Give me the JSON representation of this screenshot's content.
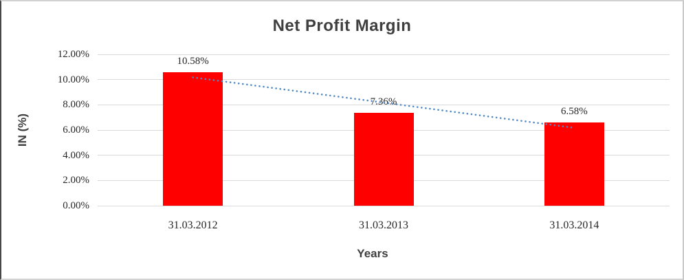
{
  "chart_data": {
    "type": "bar",
    "title": "Net Profit Margin",
    "xlabel": "Years",
    "ylabel": "IN (%)",
    "categories": [
      "31.03.2012",
      "31.03.2013",
      "31.03.2014"
    ],
    "values": [
      10.58,
      7.36,
      6.58
    ],
    "data_labels": [
      "10.58%",
      "7.36%",
      "6.58%"
    ],
    "yticks": [
      "0.00%",
      "2.00%",
      "4.00%",
      "6.00%",
      "8.00%",
      "10.00%",
      "12.00%"
    ],
    "ytick_values": [
      0,
      2,
      4,
      6,
      8,
      10,
      12
    ],
    "ylim": [
      0,
      12
    ],
    "grid": true,
    "legend": "none",
    "bar_color": "#ff0000",
    "gridline_color": "#d9d9d9",
    "title_color": "#3f3f3f",
    "tick_color": "#262626",
    "trendline": {
      "type": "linear",
      "style": "dotted",
      "color": "#5089c6"
    }
  }
}
